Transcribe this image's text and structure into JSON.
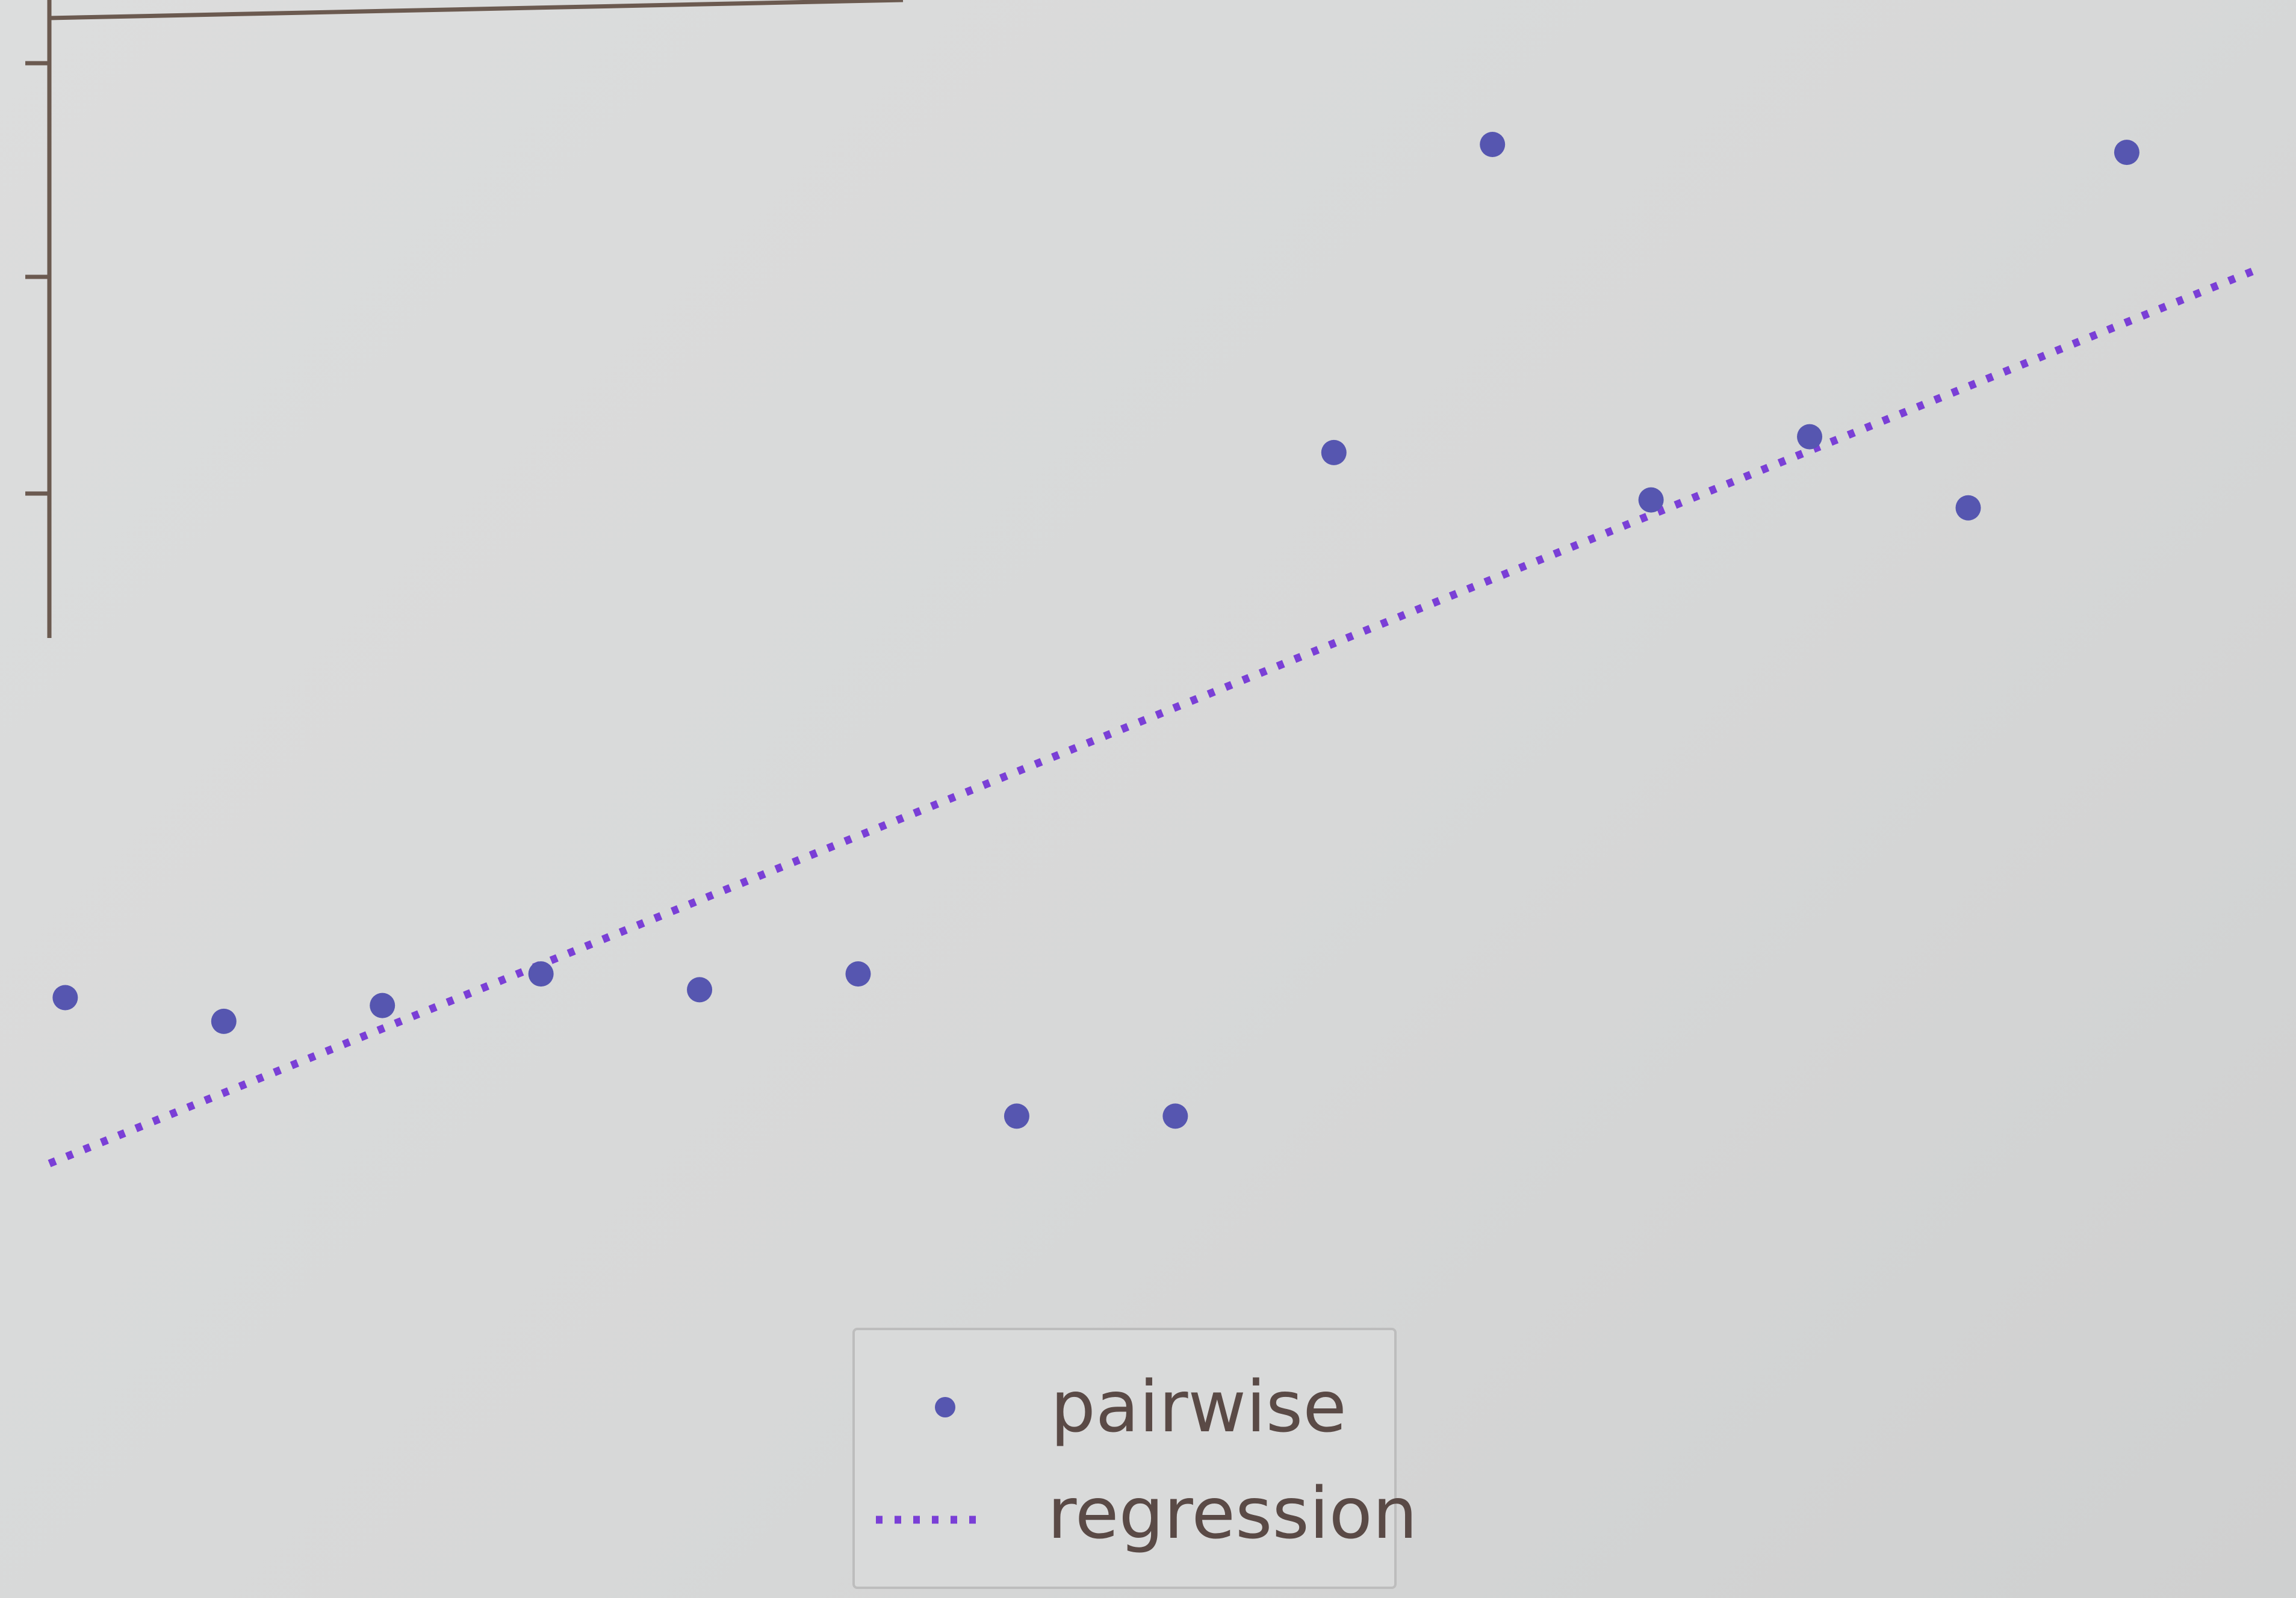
{
  "chart_data": {
    "type": "scatter",
    "title": "",
    "xlabel": "",
    "ylabel": "",
    "grid": false,
    "legend_position": "bottom-center",
    "xlim": [
      0.9,
      14.9
    ],
    "ylim": [
      0,
      10
    ],
    "series": [
      {
        "name": "pairwise",
        "kind": "points",
        "color": "#5656b0",
        "x": [
          1,
          2,
          3,
          4,
          5,
          6,
          7,
          8,
          9,
          10,
          11,
          12,
          13,
          14
        ],
        "y": [
          3.8,
          3.65,
          3.75,
          3.95,
          3.85,
          3.95,
          3.05,
          3.05,
          7.25,
          9.2,
          6.95,
          7.35,
          6.9,
          9.15
        ]
      },
      {
        "name": "regression",
        "kind": "dotted-line",
        "color": "#7a3fd6",
        "x": [
          0.9,
          14.8
        ],
        "y": [
          2.75,
          8.4
        ]
      }
    ]
  }
}
